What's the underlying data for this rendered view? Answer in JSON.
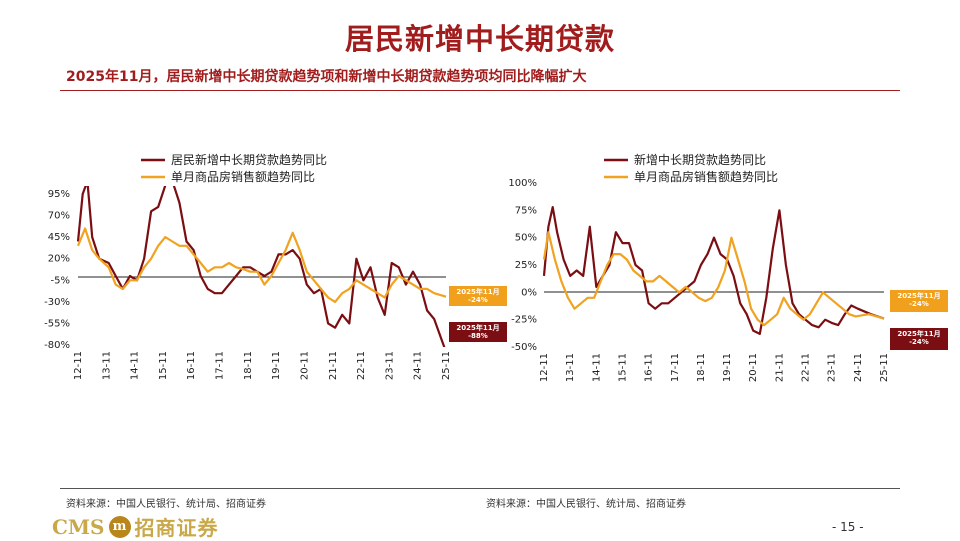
{
  "header": {
    "title": "居民新增中长期贷款",
    "subtitle": "2025年11月，居民新增中长期贷款趋势项和新增中长期贷款趋势项均同比降幅扩大"
  },
  "footer": {
    "source_left": "资料来源：中国人民银行、统计局、招商证券",
    "source_right": "资料来源：中国人民银行、统计局、招商证券",
    "logo_cms": "CMS",
    "logo_mark": "m",
    "logo_cn": "招商证券",
    "page": "- 15 -"
  },
  "colors": {
    "red_series": "#7b0e12",
    "orange_series": "#f0a220",
    "callout_orange": "#f0a01c",
    "callout_red": "#7b0e12"
  },
  "chart_data": [
    {
      "type": "line",
      "title": "",
      "x_ticks": [
        "12-11",
        "13-11",
        "14-11",
        "15-11",
        "16-11",
        "17-11",
        "18-11",
        "19-11",
        "20-11",
        "21-11",
        "22-11",
        "23-11",
        "24-11",
        "25-11"
      ],
      "y_ticks": [
        "95%",
        "70%",
        "45%",
        "20%",
        "-5%",
        "-30%",
        "-55%",
        "-80%"
      ],
      "ylim": [
        -80,
        95
      ],
      "x_range": [
        "2012-11",
        "2025-11"
      ],
      "legend_position": "top",
      "callouts": [
        {
          "series": 1,
          "lines": [
            "2025年11月",
            "-24%"
          ]
        },
        {
          "series": 0,
          "lines": [
            "2025年11月",
            "-88%"
          ]
        }
      ],
      "series": [
        {
          "name": "居民新增中长期贷款趋势同比",
          "points": [
            [
              "2012-11",
              40
            ],
            [
              "2013-01",
              95
            ],
            [
              "2013-03",
              110
            ],
            [
              "2013-05",
              45
            ],
            [
              "2013-08",
              20
            ],
            [
              "2013-12",
              15
            ],
            [
              "2014-03",
              0
            ],
            [
              "2014-06",
              -15
            ],
            [
              "2014-09",
              0
            ],
            [
              "2014-12",
              -5
            ],
            [
              "2015-03",
              20
            ],
            [
              "2015-06",
              75
            ],
            [
              "2015-09",
              80
            ],
            [
              "2015-12",
              105
            ],
            [
              "2016-03",
              110
            ],
            [
              "2016-06",
              85
            ],
            [
              "2016-09",
              40
            ],
            [
              "2016-12",
              30
            ],
            [
              "2017-03",
              0
            ],
            [
              "2017-06",
              -15
            ],
            [
              "2017-09",
              -20
            ],
            [
              "2017-12",
              -20
            ],
            [
              "2018-03",
              -10
            ],
            [
              "2018-06",
              0
            ],
            [
              "2018-09",
              10
            ],
            [
              "2018-12",
              10
            ],
            [
              "2019-03",
              5
            ],
            [
              "2019-06",
              0
            ],
            [
              "2019-09",
              5
            ],
            [
              "2019-12",
              25
            ],
            [
              "2020-03",
              25
            ],
            [
              "2020-06",
              30
            ],
            [
              "2020-09",
              20
            ],
            [
              "2020-12",
              -10
            ],
            [
              "2021-03",
              -20
            ],
            [
              "2021-06",
              -15
            ],
            [
              "2021-09",
              -55
            ],
            [
              "2021-12",
              -60
            ],
            [
              "2022-03",
              -45
            ],
            [
              "2022-06",
              -55
            ],
            [
              "2022-09",
              20
            ],
            [
              "2022-12",
              -5
            ],
            [
              "2023-03",
              10
            ],
            [
              "2023-06",
              -25
            ],
            [
              "2023-09",
              -45
            ],
            [
              "2023-12",
              15
            ],
            [
              "2024-03",
              10
            ],
            [
              "2024-06",
              -10
            ],
            [
              "2024-09",
              5
            ],
            [
              "2024-12",
              -10
            ],
            [
              "2025-03",
              -40
            ],
            [
              "2025-06",
              -50
            ],
            [
              "2025-11",
              -88
            ]
          ]
        },
        {
          "name": "单月商品房销售额趋势同比",
          "points": [
            [
              "2012-11",
              35
            ],
            [
              "2013-02",
              55
            ],
            [
              "2013-05",
              30
            ],
            [
              "2013-08",
              20
            ],
            [
              "2013-12",
              10
            ],
            [
              "2014-03",
              -10
            ],
            [
              "2014-06",
              -15
            ],
            [
              "2014-09",
              -5
            ],
            [
              "2014-12",
              -5
            ],
            [
              "2015-03",
              10
            ],
            [
              "2015-06",
              20
            ],
            [
              "2015-09",
              35
            ],
            [
              "2015-12",
              45
            ],
            [
              "2016-03",
              40
            ],
            [
              "2016-06",
              35
            ],
            [
              "2016-09",
              35
            ],
            [
              "2016-12",
              25
            ],
            [
              "2017-03",
              15
            ],
            [
              "2017-06",
              5
            ],
            [
              "2017-09",
              10
            ],
            [
              "2017-12",
              10
            ],
            [
              "2018-03",
              15
            ],
            [
              "2018-06",
              10
            ],
            [
              "2018-09",
              8
            ],
            [
              "2018-12",
              5
            ],
            [
              "2019-03",
              5
            ],
            [
              "2019-06",
              -10
            ],
            [
              "2019-09",
              0
            ],
            [
              "2019-12",
              15
            ],
            [
              "2020-03",
              30
            ],
            [
              "2020-06",
              50
            ],
            [
              "2020-09",
              30
            ],
            [
              "2020-12",
              5
            ],
            [
              "2021-03",
              -5
            ],
            [
              "2021-06",
              -15
            ],
            [
              "2021-09",
              -25
            ],
            [
              "2021-12",
              -30
            ],
            [
              "2022-03",
              -20
            ],
            [
              "2022-06",
              -15
            ],
            [
              "2022-09",
              -5
            ],
            [
              "2022-12",
              -10
            ],
            [
              "2023-03",
              -15
            ],
            [
              "2023-06",
              -20
            ],
            [
              "2023-09",
              -25
            ],
            [
              "2023-12",
              -10
            ],
            [
              "2024-03",
              0
            ],
            [
              "2024-06",
              -5
            ],
            [
              "2024-09",
              -10
            ],
            [
              "2024-12",
              -15
            ],
            [
              "2025-03",
              -15
            ],
            [
              "2025-06",
              -20
            ],
            [
              "2025-11",
              -24
            ]
          ]
        }
      ]
    },
    {
      "type": "line",
      "title": "",
      "x_ticks": [
        "12-11",
        "13-11",
        "14-11",
        "15-11",
        "16-11",
        "17-11",
        "18-11",
        "19-11",
        "20-11",
        "21-11",
        "22-11",
        "23-11",
        "24-11",
        "25-11"
      ],
      "y_ticks": [
        "100%",
        "75%",
        "50%",
        "25%",
        "0%",
        "-25%",
        "-50%"
      ],
      "ylim": [
        -50,
        100
      ],
      "x_range": [
        "2012-11",
        "2025-11"
      ],
      "legend_position": "top",
      "callouts": [
        {
          "series": 1,
          "lines": [
            "2025年11月",
            "-24%"
          ]
        },
        {
          "series": 0,
          "lines": [
            "2025年11月",
            "-24%"
          ]
        }
      ],
      "series": [
        {
          "name": "新增中长期贷款趋势同比",
          "points": [
            [
              "2012-11",
              15
            ],
            [
              "2013-01",
              60
            ],
            [
              "2013-03",
              78
            ],
            [
              "2013-05",
              55
            ],
            [
              "2013-08",
              30
            ],
            [
              "2013-11",
              15
            ],
            [
              "2014-02",
              20
            ],
            [
              "2014-05",
              15
            ],
            [
              "2014-08",
              60
            ],
            [
              "2014-11",
              5
            ],
            [
              "2015-02",
              15
            ],
            [
              "2015-05",
              25
            ],
            [
              "2015-08",
              55
            ],
            [
              "2015-11",
              45
            ],
            [
              "2016-02",
              45
            ],
            [
              "2016-05",
              25
            ],
            [
              "2016-08",
              20
            ],
            [
              "2016-11",
              -10
            ],
            [
              "2017-02",
              -15
            ],
            [
              "2017-05",
              -10
            ],
            [
              "2017-08",
              -10
            ],
            [
              "2017-11",
              -5
            ],
            [
              "2018-02",
              0
            ],
            [
              "2018-05",
              5
            ],
            [
              "2018-08",
              10
            ],
            [
              "2018-11",
              25
            ],
            [
              "2019-02",
              35
            ],
            [
              "2019-05",
              50
            ],
            [
              "2019-08",
              35
            ],
            [
              "2019-11",
              30
            ],
            [
              "2020-02",
              15
            ],
            [
              "2020-05",
              -10
            ],
            [
              "2020-08",
              -20
            ],
            [
              "2020-11",
              -35
            ],
            [
              "2021-02",
              -38
            ],
            [
              "2021-05",
              -5
            ],
            [
              "2021-08",
              40
            ],
            [
              "2021-11",
              75
            ],
            [
              "2022-02",
              25
            ],
            [
              "2022-05",
              -10
            ],
            [
              "2022-08",
              -20
            ],
            [
              "2022-11",
              -25
            ],
            [
              "2023-02",
              -30
            ],
            [
              "2023-05",
              -32
            ],
            [
              "2023-08",
              -25
            ],
            [
              "2023-11",
              -28
            ],
            [
              "2024-02",
              -30
            ],
            [
              "2024-05",
              -20
            ],
            [
              "2024-08",
              -12
            ],
            [
              "2024-11",
              -15
            ],
            [
              "2025-05",
              -20
            ],
            [
              "2025-11",
              -24
            ]
          ]
        },
        {
          "name": "单月商品房销售额趋势同比",
          "points": [
            [
              "2012-11",
              30
            ],
            [
              "2013-01",
              55
            ],
            [
              "2013-04",
              30
            ],
            [
              "2013-07",
              10
            ],
            [
              "2013-10",
              -5
            ],
            [
              "2014-01",
              -15
            ],
            [
              "2014-04",
              -10
            ],
            [
              "2014-07",
              -5
            ],
            [
              "2014-10",
              -5
            ],
            [
              "2015-01",
              10
            ],
            [
              "2015-04",
              25
            ],
            [
              "2015-07",
              35
            ],
            [
              "2015-10",
              35
            ],
            [
              "2016-01",
              30
            ],
            [
              "2016-04",
              20
            ],
            [
              "2016-07",
              15
            ],
            [
              "2016-10",
              10
            ],
            [
              "2017-01",
              10
            ],
            [
              "2017-04",
              15
            ],
            [
              "2017-07",
              10
            ],
            [
              "2017-10",
              5
            ],
            [
              "2018-01",
              0
            ],
            [
              "2018-04",
              5
            ],
            [
              "2018-07",
              0
            ],
            [
              "2018-10",
              -5
            ],
            [
              "2019-01",
              -8
            ],
            [
              "2019-04",
              -5
            ],
            [
              "2019-07",
              5
            ],
            [
              "2019-10",
              20
            ],
            [
              "2020-01",
              50
            ],
            [
              "2020-04",
              30
            ],
            [
              "2020-07",
              10
            ],
            [
              "2020-10",
              -15
            ],
            [
              "2021-01",
              -25
            ],
            [
              "2021-04",
              -30
            ],
            [
              "2021-07",
              -25
            ],
            [
              "2021-10",
              -20
            ],
            [
              "2022-01",
              -5
            ],
            [
              "2022-04",
              -15
            ],
            [
              "2022-07",
              -20
            ],
            [
              "2022-10",
              -25
            ],
            [
              "2023-01",
              -20
            ],
            [
              "2023-04",
              -10
            ],
            [
              "2023-07",
              0
            ],
            [
              "2023-10",
              -5
            ],
            [
              "2024-01",
              -10
            ],
            [
              "2024-04",
              -15
            ],
            [
              "2024-07",
              -20
            ],
            [
              "2024-10",
              -22
            ],
            [
              "2025-04",
              -20
            ],
            [
              "2025-11",
              -24
            ]
          ]
        }
      ]
    }
  ]
}
